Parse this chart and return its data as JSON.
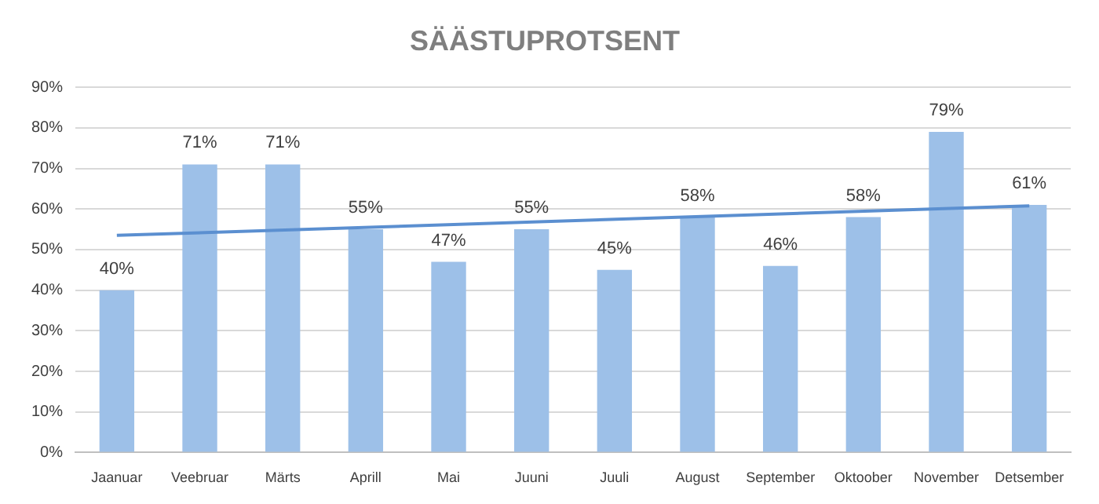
{
  "chart_data": {
    "type": "bar",
    "title": "SÄÄSTUPROTSENT",
    "categories": [
      "Jaanuar",
      "Veebruar",
      "Märts",
      "Aprill",
      "Mai",
      "Juuni",
      "Juuli",
      "August",
      "September",
      "Oktoober",
      "November",
      "Detsember"
    ],
    "series": [
      {
        "color": "#9dc0e8",
        "values": [
          40,
          71,
          71,
          55,
          47,
          55,
          45,
          58,
          46,
          58,
          79,
          61
        ],
        "value_labels": [
          "40%",
          "71%",
          "71%",
          "55%",
          "47%",
          "55%",
          "45%",
          "58%",
          "46%",
          "58%",
          "79%",
          "61%"
        ]
      },
      {
        "type": "line",
        "color": "#5b8fd0",
        "values": [
          53.5,
          null,
          null,
          null,
          null,
          null,
          null,
          null,
          null,
          null,
          null,
          60.8
        ]
      }
    ],
    "ylim": [
      0,
      90
    ],
    "yticks": [
      {
        "value": 0,
        "label": "0%"
      },
      {
        "value": 10,
        "label": "10%"
      },
      {
        "value": 20,
        "label": "20%"
      },
      {
        "value": 30,
        "label": "30%"
      },
      {
        "value": 40,
        "label": "40%"
      },
      {
        "value": 50,
        "label": "50%"
      },
      {
        "value": 60,
        "label": "60%"
      },
      {
        "value": 70,
        "label": "70%"
      },
      {
        "value": 80,
        "label": "80%"
      },
      {
        "value": 90,
        "label": "90%"
      }
    ],
    "grid": "y",
    "legend": false,
    "marker": "none"
  }
}
